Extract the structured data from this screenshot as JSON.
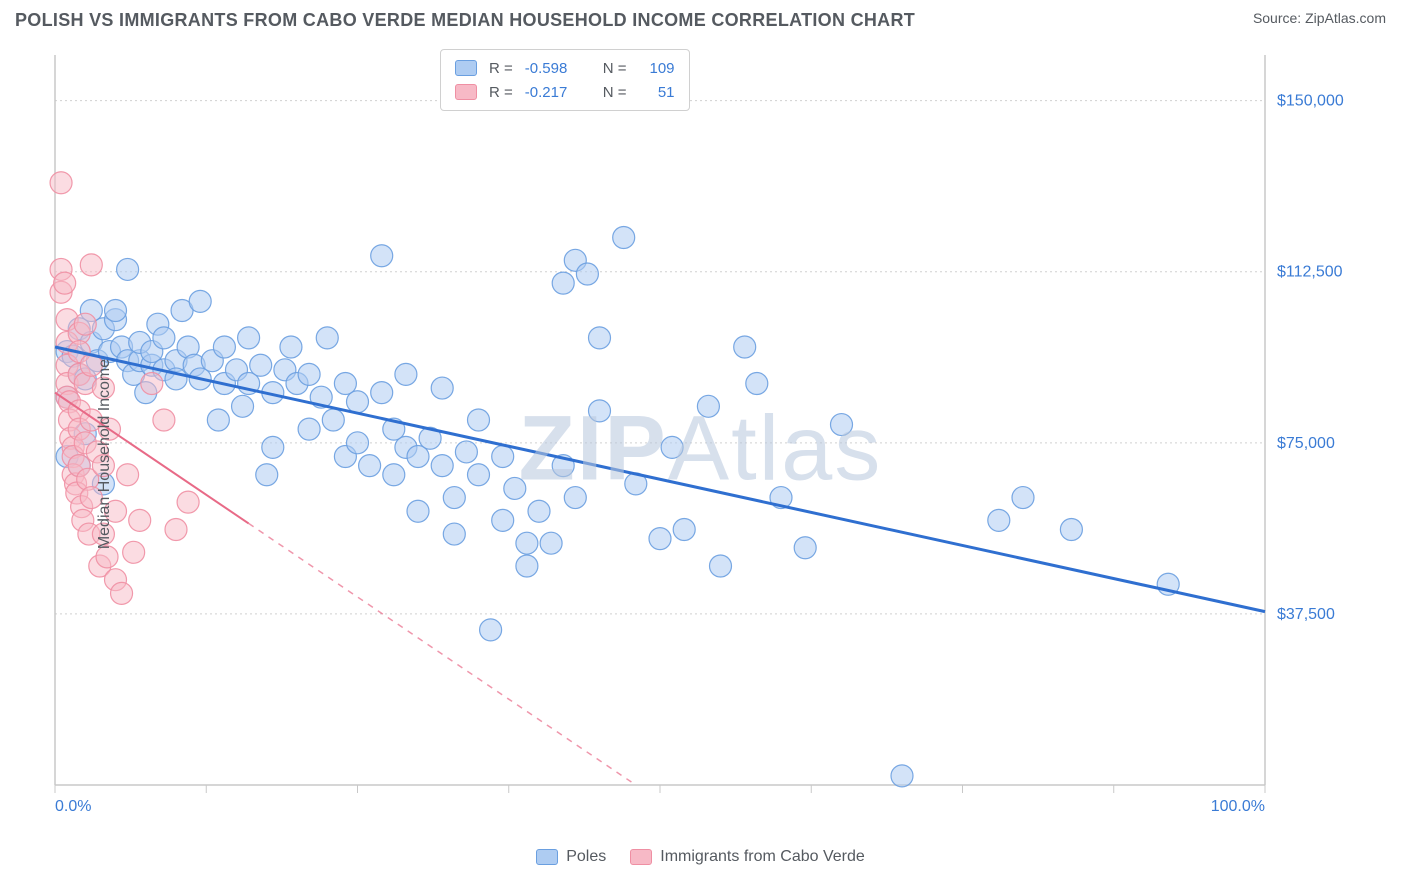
{
  "header": {
    "title": "POLISH VS IMMIGRANTS FROM CABO VERDE MEDIAN HOUSEHOLD INCOME CORRELATION CHART",
    "source_prefix": "Source: ",
    "source_name": "ZipAtlas.com"
  },
  "watermark": {
    "part1": "ZIP",
    "part2": "Atlas"
  },
  "chart": {
    "type": "scatter",
    "ylabel": "Median Household Income",
    "background_color": "#ffffff",
    "grid_color": "#d0d0d0",
    "axis_color": "#c8c8c8",
    "xlim": [
      0,
      100
    ],
    "ylim": [
      0,
      160000
    ],
    "x_tick_positions": [
      0,
      12.5,
      25,
      37.5,
      50,
      62.5,
      75,
      87.5,
      100
    ],
    "x_tick_labels_shown": {
      "0": "0.0%",
      "100": "100.0%"
    },
    "y_ticks": [
      {
        "value": 37500,
        "label": "$37,500"
      },
      {
        "value": 75000,
        "label": "$75,000"
      },
      {
        "value": 112500,
        "label": "$112,500"
      },
      {
        "value": 150000,
        "label": "$150,000"
      }
    ],
    "series": [
      {
        "key": "poles",
        "label": "Poles",
        "color_fill": "#aeccf2",
        "color_stroke": "#6a9fe0",
        "r_value": "-0.598",
        "n_value": "109",
        "trend": {
          "x1": 0,
          "y1": 96000,
          "x2": 100,
          "y2": 38000,
          "solid_until_x": 100,
          "color": "#2f6fd0",
          "width": 3
        },
        "marker_radius": 11,
        "marker_opacity": 0.55,
        "points": [
          [
            1,
            72000
          ],
          [
            1,
            85000
          ],
          [
            1,
            95000
          ],
          [
            1.5,
            94000
          ],
          [
            2,
            70000
          ],
          [
            2,
            90000
          ],
          [
            2,
            100000
          ],
          [
            2.5,
            89000
          ],
          [
            2.5,
            77000
          ],
          [
            3,
            97000
          ],
          [
            3,
            104000
          ],
          [
            3.5,
            93000
          ],
          [
            4,
            66000
          ],
          [
            4,
            100000
          ],
          [
            4.5,
            95000
          ],
          [
            5,
            102000
          ],
          [
            5,
            104000
          ],
          [
            5.5,
            96000
          ],
          [
            6,
            93000
          ],
          [
            6,
            113000
          ],
          [
            6.5,
            90000
          ],
          [
            7,
            93000
          ],
          [
            7,
            97000
          ],
          [
            7.5,
            86000
          ],
          [
            8,
            92000
          ],
          [
            8,
            95000
          ],
          [
            8.5,
            101000
          ],
          [
            9,
            91000
          ],
          [
            9,
            98000
          ],
          [
            10,
            93000
          ],
          [
            10,
            89000
          ],
          [
            10.5,
            104000
          ],
          [
            11,
            96000
          ],
          [
            11.5,
            92000
          ],
          [
            12,
            89000
          ],
          [
            12,
            106000
          ],
          [
            13,
            93000
          ],
          [
            13.5,
            80000
          ],
          [
            14,
            88000
          ],
          [
            14,
            96000
          ],
          [
            15,
            91000
          ],
          [
            15.5,
            83000
          ],
          [
            16,
            88000
          ],
          [
            16,
            98000
          ],
          [
            17,
            92000
          ],
          [
            17.5,
            68000
          ],
          [
            18,
            86000
          ],
          [
            18,
            74000
          ],
          [
            19,
            91000
          ],
          [
            19.5,
            96000
          ],
          [
            20,
            88000
          ],
          [
            21,
            90000
          ],
          [
            21,
            78000
          ],
          [
            22,
            85000
          ],
          [
            22.5,
            98000
          ],
          [
            23,
            80000
          ],
          [
            24,
            72000
          ],
          [
            24,
            88000
          ],
          [
            25,
            84000
          ],
          [
            25,
            75000
          ],
          [
            26,
            70000
          ],
          [
            27,
            86000
          ],
          [
            27,
            116000
          ],
          [
            28,
            68000
          ],
          [
            28,
            78000
          ],
          [
            29,
            74000
          ],
          [
            29,
            90000
          ],
          [
            30,
            72000
          ],
          [
            30,
            60000
          ],
          [
            31,
            76000
          ],
          [
            32,
            70000
          ],
          [
            32,
            87000
          ],
          [
            33,
            63000
          ],
          [
            33,
            55000
          ],
          [
            34,
            73000
          ],
          [
            35,
            80000
          ],
          [
            35,
            68000
          ],
          [
            36,
            34000
          ],
          [
            37,
            72000
          ],
          [
            37,
            58000
          ],
          [
            38,
            65000
          ],
          [
            39,
            53000
          ],
          [
            39,
            48000
          ],
          [
            40,
            60000
          ],
          [
            41,
            53000
          ],
          [
            42,
            110000
          ],
          [
            42,
            70000
          ],
          [
            43,
            115000
          ],
          [
            43,
            63000
          ],
          [
            44,
            112000
          ],
          [
            45,
            82000
          ],
          [
            45,
            98000
          ],
          [
            47,
            120000
          ],
          [
            48,
            66000
          ],
          [
            50,
            54000
          ],
          [
            51,
            74000
          ],
          [
            52,
            56000
          ],
          [
            54,
            83000
          ],
          [
            55,
            48000
          ],
          [
            57,
            96000
          ],
          [
            58,
            88000
          ],
          [
            60,
            63000
          ],
          [
            62,
            52000
          ],
          [
            65,
            79000
          ],
          [
            70,
            2000
          ],
          [
            78,
            58000
          ],
          [
            80,
            63000
          ],
          [
            84,
            56000
          ],
          [
            92,
            44000
          ]
        ]
      },
      {
        "key": "cabo_verde",
        "label": "Immigrants from Cabo Verde",
        "color_fill": "#f7b9c6",
        "color_stroke": "#ef8fa3",
        "r_value": "-0.217",
        "n_value": "51",
        "trend": {
          "x1": 0,
          "y1": 86000,
          "x2": 48,
          "y2": 0,
          "solid_until_x": 16,
          "color": "#e86a87",
          "width": 2
        },
        "marker_radius": 11,
        "marker_opacity": 0.5,
        "points": [
          [
            0.5,
            132000
          ],
          [
            0.5,
            113000
          ],
          [
            0.5,
            108000
          ],
          [
            0.8,
            110000
          ],
          [
            1,
            102000
          ],
          [
            1,
            97000
          ],
          [
            1,
            92000
          ],
          [
            1,
            88000
          ],
          [
            1,
            85000
          ],
          [
            1.2,
            84000
          ],
          [
            1.2,
            80000
          ],
          [
            1.3,
            76000
          ],
          [
            1.5,
            74000
          ],
          [
            1.5,
            72000
          ],
          [
            1.5,
            68000
          ],
          [
            1.7,
            66000
          ],
          [
            1.8,
            64000
          ],
          [
            2,
            99000
          ],
          [
            2,
            95000
          ],
          [
            2,
            90000
          ],
          [
            2,
            82000
          ],
          [
            2,
            78000
          ],
          [
            2,
            70000
          ],
          [
            2.2,
            61000
          ],
          [
            2.3,
            58000
          ],
          [
            2.5,
            101000
          ],
          [
            2.5,
            88000
          ],
          [
            2.5,
            75000
          ],
          [
            2.7,
            67000
          ],
          [
            2.8,
            55000
          ],
          [
            3,
            114000
          ],
          [
            3,
            92000
          ],
          [
            3,
            80000
          ],
          [
            3,
            63000
          ],
          [
            3.5,
            73000
          ],
          [
            3.7,
            48000
          ],
          [
            4,
            87000
          ],
          [
            4,
            70000
          ],
          [
            4,
            55000
          ],
          [
            4.3,
            50000
          ],
          [
            4.5,
            78000
          ],
          [
            5,
            60000
          ],
          [
            5,
            45000
          ],
          [
            5.5,
            42000
          ],
          [
            6,
            68000
          ],
          [
            6.5,
            51000
          ],
          [
            7,
            58000
          ],
          [
            8,
            88000
          ],
          [
            9,
            80000
          ],
          [
            10,
            56000
          ],
          [
            11,
            62000
          ]
        ]
      }
    ]
  },
  "legend_top": {
    "r_label": "R =",
    "n_label": "N ="
  }
}
